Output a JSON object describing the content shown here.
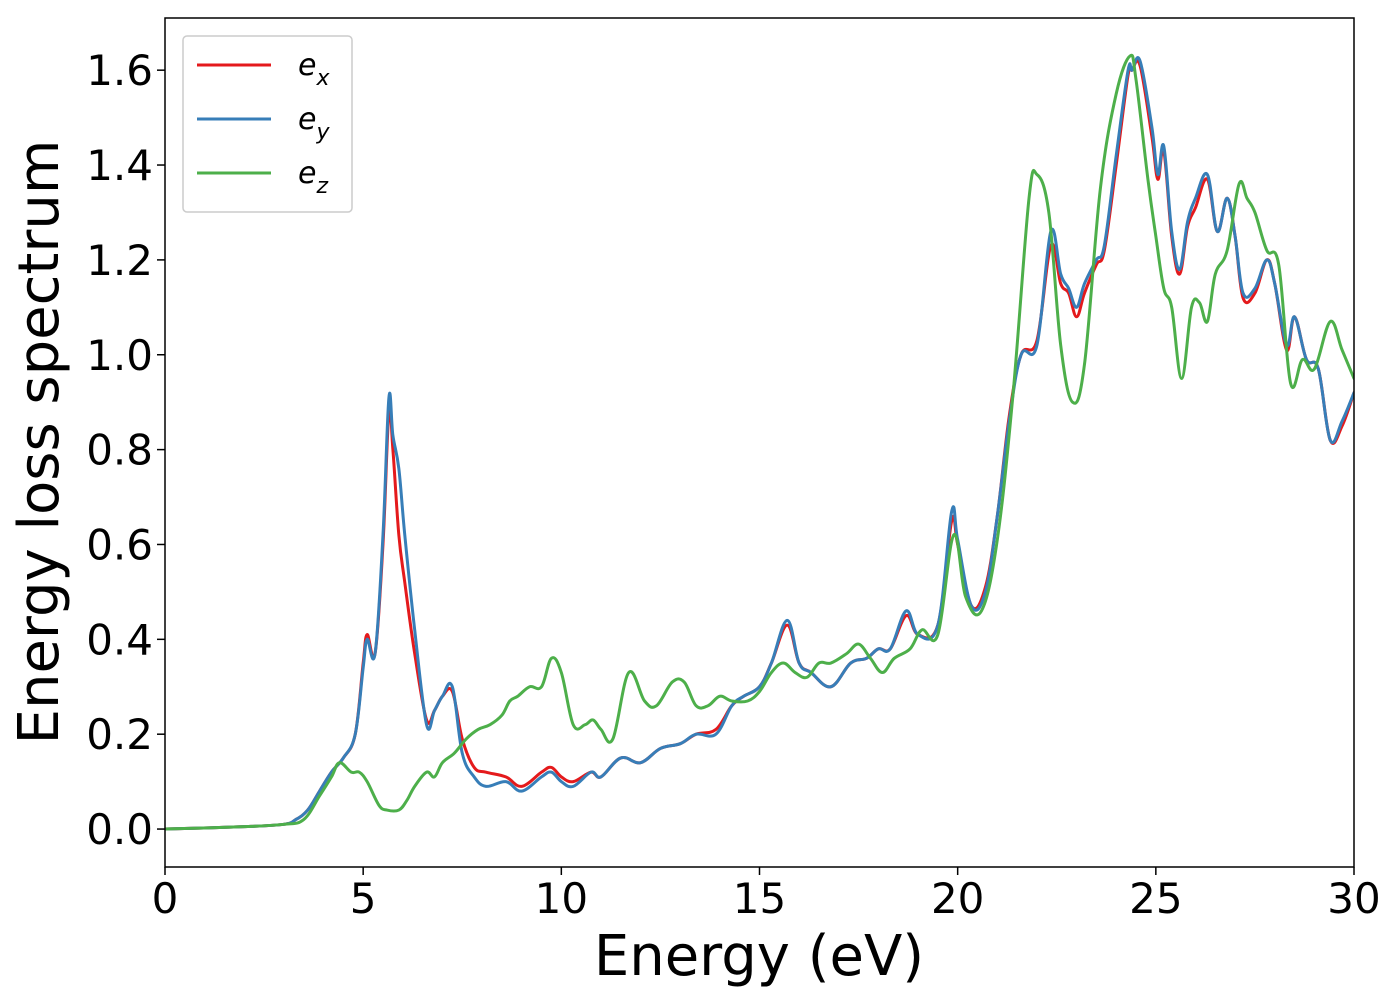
{
  "chart_data": {
    "type": "line",
    "xlabel": "Energy (eV)",
    "ylabel": "Energy loss spectrum",
    "xlim": [
      0,
      30
    ],
    "ylim": [
      -0.08,
      1.71
    ],
    "xticks": [
      0,
      5,
      10,
      15,
      20,
      25,
      30
    ],
    "xtick_labels": [
      "0",
      "5",
      "10",
      "15",
      "20",
      "25",
      "30"
    ],
    "yticks": [
      0.0,
      0.2,
      0.4,
      0.6,
      0.8,
      1.0,
      1.2,
      1.4,
      1.6
    ],
    "ytick_labels": [
      "0.0",
      "0.2",
      "0.4",
      "0.6",
      "0.8",
      "1.0",
      "1.2",
      "1.4",
      "1.6"
    ],
    "grid": false,
    "legend_position": "top-left",
    "series": [
      {
        "name": "e_x",
        "legend_base": "e",
        "legend_sub": "x",
        "color": "#e41a1c",
        "x": [
          0,
          2,
          3,
          3.3,
          3.6,
          3.9,
          4.2,
          4.5,
          4.8,
          5.0,
          5.1,
          5.3,
          5.5,
          5.65,
          5.75,
          5.9,
          6.05,
          6.3,
          6.6,
          6.8,
          7.0,
          7.25,
          7.5,
          7.8,
          8.1,
          8.6,
          9.0,
          9.5,
          9.75,
          10.0,
          10.3,
          10.75,
          11.0,
          11.5,
          12.0,
          12.5,
          13.0,
          13.4,
          13.9,
          14.3,
          14.6,
          15.0,
          15.3,
          15.7,
          16.0,
          16.3,
          16.8,
          17.3,
          17.7,
          18.0,
          18.3,
          18.7,
          19.0,
          19.5,
          19.85,
          20.0,
          20.35,
          20.7,
          21.0,
          21.3,
          21.6,
          22.0,
          22.35,
          22.6,
          22.8,
          23.0,
          23.2,
          23.5,
          23.7,
          24.0,
          24.3,
          24.4,
          24.6,
          24.9,
          25.05,
          25.2,
          25.4,
          25.6,
          25.8,
          26.0,
          26.3,
          26.55,
          26.8,
          27.0,
          27.2,
          27.5,
          27.8,
          28.0,
          28.3,
          28.5,
          28.8,
          29.1,
          29.4,
          29.7,
          30.0
        ],
        "y": [
          0.0,
          0.005,
          0.01,
          0.02,
          0.04,
          0.08,
          0.12,
          0.15,
          0.2,
          0.35,
          0.41,
          0.37,
          0.6,
          0.88,
          0.8,
          0.62,
          0.52,
          0.37,
          0.23,
          0.25,
          0.28,
          0.29,
          0.19,
          0.13,
          0.12,
          0.11,
          0.09,
          0.12,
          0.13,
          0.11,
          0.1,
          0.12,
          0.11,
          0.15,
          0.14,
          0.17,
          0.18,
          0.2,
          0.21,
          0.26,
          0.28,
          0.3,
          0.35,
          0.43,
          0.35,
          0.33,
          0.3,
          0.35,
          0.36,
          0.38,
          0.38,
          0.45,
          0.41,
          0.43,
          0.65,
          0.6,
          0.47,
          0.51,
          0.66,
          0.87,
          1.0,
          1.03,
          1.23,
          1.15,
          1.13,
          1.08,
          1.13,
          1.19,
          1.22,
          1.4,
          1.59,
          1.6,
          1.61,
          1.46,
          1.37,
          1.43,
          1.25,
          1.17,
          1.27,
          1.31,
          1.37,
          1.26,
          1.33,
          1.25,
          1.12,
          1.13,
          1.2,
          1.15,
          1.01,
          1.08,
          0.99,
          0.97,
          0.82,
          0.85,
          0.92
        ]
      },
      {
        "name": "e_y",
        "legend_base": "e",
        "legend_sub": "y",
        "color": "#377eb8",
        "x": [
          0,
          2,
          3,
          3.3,
          3.6,
          3.9,
          4.2,
          4.5,
          4.8,
          5.0,
          5.1,
          5.3,
          5.5,
          5.65,
          5.75,
          5.9,
          6.05,
          6.3,
          6.6,
          6.8,
          7.0,
          7.25,
          7.5,
          7.8,
          8.1,
          8.6,
          9.0,
          9.5,
          9.75,
          10.0,
          10.3,
          10.75,
          11.0,
          11.5,
          12.0,
          12.5,
          13.0,
          13.4,
          13.9,
          14.3,
          14.6,
          15.0,
          15.3,
          15.7,
          16.0,
          16.3,
          16.8,
          17.3,
          17.7,
          18.0,
          18.3,
          18.7,
          19.0,
          19.5,
          19.85,
          20.0,
          20.35,
          20.7,
          21.0,
          21.3,
          21.6,
          22.0,
          22.35,
          22.6,
          22.8,
          23.0,
          23.2,
          23.5,
          23.7,
          24.0,
          24.3,
          24.4,
          24.6,
          24.9,
          25.05,
          25.2,
          25.4,
          25.6,
          25.8,
          26.0,
          26.3,
          26.55,
          26.8,
          27.0,
          27.2,
          27.5,
          27.8,
          28.0,
          28.3,
          28.5,
          28.8,
          29.1,
          29.4,
          29.7,
          30.0
        ],
        "y": [
          0.0,
          0.005,
          0.01,
          0.02,
          0.04,
          0.08,
          0.12,
          0.15,
          0.2,
          0.34,
          0.4,
          0.37,
          0.62,
          0.91,
          0.83,
          0.76,
          0.62,
          0.42,
          0.22,
          0.25,
          0.28,
          0.3,
          0.16,
          0.11,
          0.09,
          0.1,
          0.08,
          0.11,
          0.12,
          0.1,
          0.09,
          0.12,
          0.11,
          0.15,
          0.14,
          0.17,
          0.18,
          0.2,
          0.2,
          0.26,
          0.28,
          0.3,
          0.35,
          0.44,
          0.35,
          0.33,
          0.3,
          0.35,
          0.36,
          0.38,
          0.38,
          0.46,
          0.41,
          0.43,
          0.67,
          0.61,
          0.47,
          0.5,
          0.66,
          0.86,
          1.0,
          1.02,
          1.26,
          1.17,
          1.14,
          1.1,
          1.15,
          1.2,
          1.23,
          1.42,
          1.6,
          1.6,
          1.62,
          1.48,
          1.38,
          1.44,
          1.26,
          1.18,
          1.28,
          1.33,
          1.38,
          1.26,
          1.33,
          1.25,
          1.13,
          1.14,
          1.2,
          1.15,
          1.02,
          1.08,
          0.99,
          0.97,
          0.82,
          0.86,
          0.92
        ]
      },
      {
        "name": "e_z",
        "legend_base": "e",
        "legend_sub": "z",
        "color": "#4daf4a",
        "x": [
          0,
          2,
          3,
          3.5,
          3.9,
          4.2,
          4.4,
          4.7,
          4.9,
          5.1,
          5.4,
          5.6,
          5.9,
          6.1,
          6.3,
          6.6,
          6.8,
          7.0,
          7.3,
          7.6,
          7.9,
          8.2,
          8.5,
          8.7,
          8.9,
          9.2,
          9.5,
          9.75,
          10.0,
          10.3,
          10.6,
          10.8,
          11.0,
          11.3,
          11.7,
          12.1,
          12.4,
          12.8,
          13.1,
          13.4,
          13.7,
          14.0,
          14.3,
          14.7,
          15.0,
          15.3,
          15.6,
          15.9,
          16.2,
          16.5,
          16.8,
          17.2,
          17.5,
          17.8,
          18.1,
          18.4,
          18.8,
          19.1,
          19.5,
          19.9,
          20.2,
          20.6,
          21.0,
          21.4,
          21.8,
          22.0,
          22.3,
          22.6,
          22.9,
          23.2,
          23.6,
          24.0,
          24.35,
          24.5,
          24.8,
          25.0,
          25.2,
          25.4,
          25.65,
          25.9,
          26.1,
          26.3,
          26.5,
          26.8,
          27.1,
          27.3,
          27.5,
          27.8,
          28.1,
          28.4,
          28.7,
          29.0,
          29.4,
          29.7,
          30.0
        ],
        "y": [
          0.0,
          0.005,
          0.01,
          0.02,
          0.07,
          0.11,
          0.14,
          0.12,
          0.12,
          0.1,
          0.05,
          0.04,
          0.04,
          0.06,
          0.09,
          0.12,
          0.11,
          0.14,
          0.16,
          0.19,
          0.21,
          0.22,
          0.24,
          0.27,
          0.28,
          0.3,
          0.3,
          0.36,
          0.33,
          0.22,
          0.22,
          0.23,
          0.21,
          0.19,
          0.33,
          0.27,
          0.26,
          0.31,
          0.31,
          0.26,
          0.26,
          0.28,
          0.27,
          0.27,
          0.29,
          0.33,
          0.35,
          0.33,
          0.32,
          0.35,
          0.35,
          0.37,
          0.39,
          0.36,
          0.33,
          0.36,
          0.38,
          0.42,
          0.41,
          0.62,
          0.49,
          0.46,
          0.61,
          0.92,
          1.33,
          1.38,
          1.3,
          1.02,
          0.9,
          0.98,
          1.35,
          1.55,
          1.63,
          1.58,
          1.37,
          1.25,
          1.14,
          1.1,
          0.95,
          1.1,
          1.11,
          1.07,
          1.17,
          1.22,
          1.36,
          1.33,
          1.3,
          1.22,
          1.19,
          0.94,
          0.99,
          0.97,
          1.07,
          1.01,
          0.95
        ]
      }
    ]
  }
}
